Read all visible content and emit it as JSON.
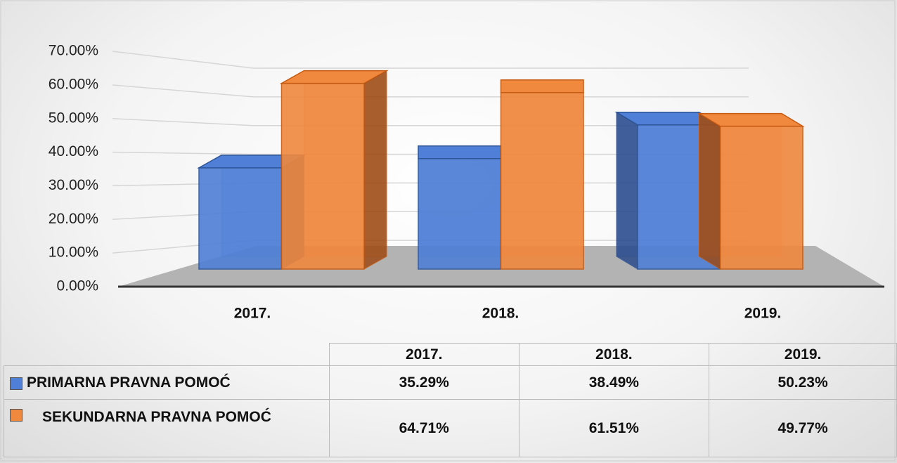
{
  "chart_data": {
    "type": "bar3d",
    "categories": [
      "2017.",
      "2018.",
      "2019."
    ],
    "series": [
      {
        "name": "PRIMARNA PRAVNA POMOĆ",
        "color": "#4f7fd6",
        "values": [
          35.29,
          38.49,
          50.23
        ],
        "value_labels": [
          "35.29%",
          "38.49%",
          "50.23%"
        ]
      },
      {
        "name": "SEKUNDARNA PRAVNA POMOĆ",
        "color": "#f0883e",
        "values": [
          64.71,
          61.51,
          49.77
        ],
        "value_labels": [
          "64.71%",
          "61.51%",
          "49.77%"
        ]
      }
    ],
    "ylim": [
      0,
      70
    ],
    "yticks": [
      {
        "value": 0,
        "label": "0.00%"
      },
      {
        "value": 10,
        "label": "10.00%"
      },
      {
        "value": 20,
        "label": "20.00%"
      },
      {
        "value": 30,
        "label": "30.00%"
      },
      {
        "value": 40,
        "label": "40.00%"
      },
      {
        "value": 50,
        "label": "50.00%"
      },
      {
        "value": 60,
        "label": "60.00%"
      },
      {
        "value": 70,
        "label": "70.00%"
      }
    ],
    "grid": true
  }
}
